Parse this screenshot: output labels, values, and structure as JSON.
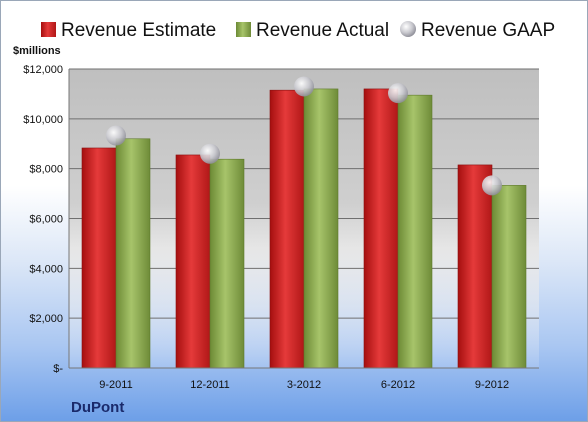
{
  "units_label": "$millions",
  "company": "DuPont",
  "chart_data": {
    "type": "bar",
    "categories": [
      "9-2011",
      "12-2011",
      "3-2012",
      "6-2012",
      "9-2012"
    ],
    "series": [
      {
        "name": "Revenue Estimate",
        "values": [
          8830,
          8550,
          11150,
          11200,
          8150
        ],
        "color": "#d42222"
      },
      {
        "name": "Revenue Actual",
        "values": [
          9200,
          8380,
          11200,
          10950,
          7330
        ],
        "color": "#86a44a"
      },
      {
        "name": "Revenue GAAP",
        "values": [
          9330,
          8600,
          11300,
          11030,
          7330
        ],
        "color": "#c8c8d0",
        "marker": "sphere"
      }
    ],
    "ylim": [
      0,
      12000
    ],
    "yticks": [
      0,
      2000,
      4000,
      6000,
      8000,
      10000,
      12000
    ],
    "ytick_labels": [
      "$-",
      "$2,000",
      "$4,000",
      "$6,000",
      "$8,000",
      "$10,000",
      "$12,000"
    ],
    "grid": true,
    "legend_position": "top"
  }
}
